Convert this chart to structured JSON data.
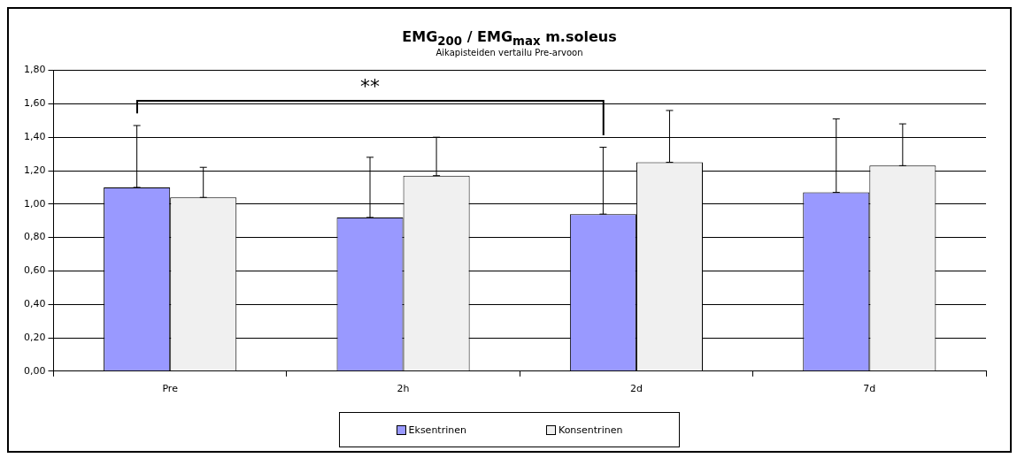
{
  "chart_data": {
    "type": "bar",
    "title": "EMG$_{200}$ / EMG$_{max}$ m.soleus",
    "subtitle": "Aikapisteiden vertailu Pre-arvoon",
    "categories": [
      "Pre",
      "2h",
      "2d",
      "7d"
    ],
    "series": [
      {
        "name": "Eksentrinen",
        "color": "#9999ff",
        "values": [
          1.1,
          0.92,
          0.94,
          1.07
        ],
        "errors": [
          [
            1.1,
            1.47
          ],
          [
            0.92,
            1.28
          ],
          [
            0.94,
            1.34
          ],
          [
            1.07,
            1.51
          ]
        ]
      },
      {
        "name": "Konsentrinen",
        "color": "#f0f0f0",
        "values": [
          1.04,
          1.17,
          1.25,
          1.23
        ],
        "errors": [
          [
            1.04,
            1.22
          ],
          [
            1.17,
            1.4
          ],
          [
            1.25,
            1.56
          ],
          [
            1.23,
            1.48
          ]
        ]
      }
    ],
    "ylim": [
      0,
      1.8
    ],
    "yticks": [
      {
        "value": 0,
        "label": "0,00"
      },
      {
        "value": 0.2,
        "label": "0,20"
      },
      {
        "value": 0.4,
        "label": "0,40"
      },
      {
        "value": 0.6,
        "label": "0,60"
      },
      {
        "value": 0.8,
        "label": "0,80"
      },
      {
        "value": 1.0,
        "label": "1,00"
      },
      {
        "value": 1.2,
        "label": "1,20"
      },
      {
        "value": 1.4,
        "label": "1,40"
      },
      {
        "value": 1.6,
        "label": "1,60"
      },
      {
        "value": 1.8,
        "label": "1,80"
      }
    ],
    "grid": "y",
    "legend": "bottom",
    "annotations": [
      "**"
    ]
  }
}
